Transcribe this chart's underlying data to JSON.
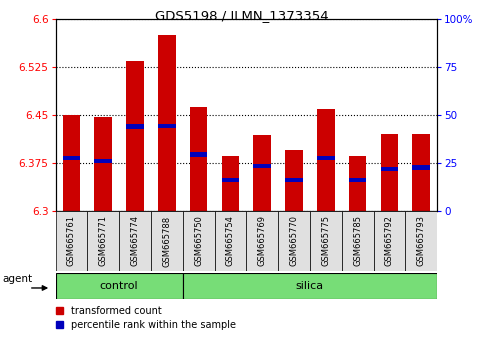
{
  "title": "GDS5198 / ILMN_1373354",
  "samples": [
    "GSM665761",
    "GSM665771",
    "GSM665774",
    "GSM665788",
    "GSM665750",
    "GSM665754",
    "GSM665769",
    "GSM665770",
    "GSM665775",
    "GSM665785",
    "GSM665792",
    "GSM665793"
  ],
  "groups": [
    "control",
    "control",
    "control",
    "control",
    "silica",
    "silica",
    "silica",
    "silica",
    "silica",
    "silica",
    "silica",
    "silica"
  ],
  "bar_heights": [
    6.45,
    6.447,
    6.535,
    6.575,
    6.462,
    6.385,
    6.418,
    6.395,
    6.46,
    6.385,
    6.42,
    6.42
  ],
  "blue_marker_y": [
    6.383,
    6.378,
    6.432,
    6.433,
    6.388,
    6.348,
    6.37,
    6.348,
    6.383,
    6.348,
    6.365,
    6.368
  ],
  "bar_bottom": 6.3,
  "ylim": [
    6.3,
    6.6
  ],
  "yticks_left": [
    6.3,
    6.375,
    6.45,
    6.525,
    6.6
  ],
  "yticks_right_vals": [
    0,
    25,
    50,
    75,
    100
  ],
  "yticks_right_labels": [
    "0",
    "25",
    "50",
    "75",
    "100%"
  ],
  "bar_color": "#cc0000",
  "blue_color": "#0000bb",
  "bar_width": 0.55,
  "green_color": "#77dd77",
  "agent_label": "agent",
  "legend_items": [
    "transformed count",
    "percentile rank within the sample"
  ],
  "plot_bg": "#ffffff",
  "control_count": 4,
  "n_samples": 12
}
